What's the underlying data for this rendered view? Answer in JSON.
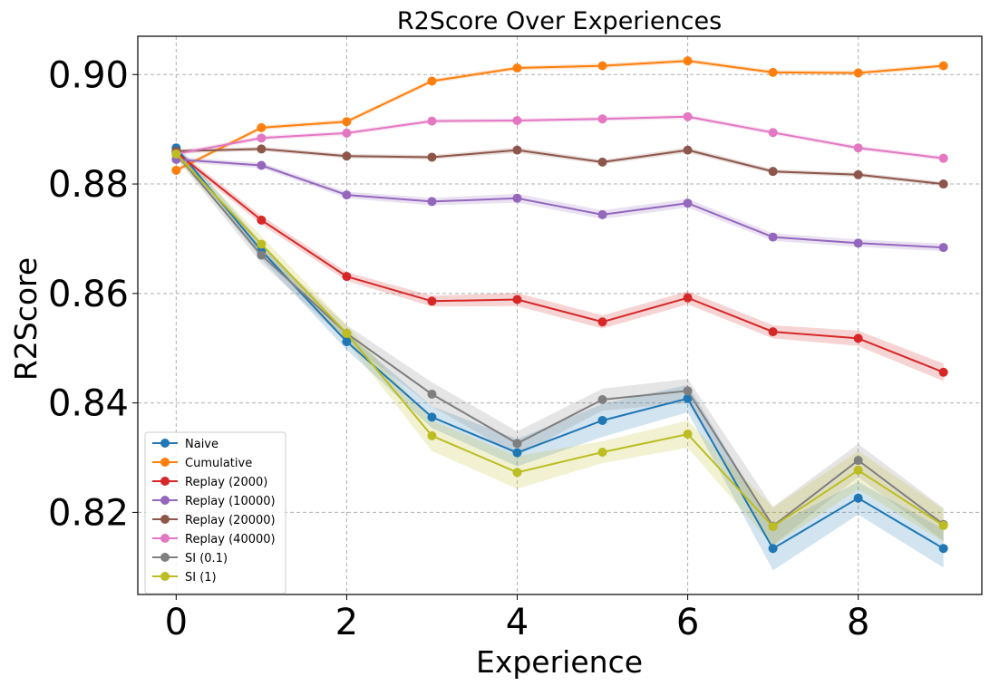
{
  "chart_data": {
    "type": "line",
    "title": "R2Score Over Experiences",
    "xlabel": "Experience",
    "ylabel": "R2Score",
    "x": [
      0,
      1,
      2,
      3,
      4,
      5,
      6,
      7,
      8,
      9
    ],
    "xlim": [
      -0.45,
      9.45
    ],
    "ylim": [
      0.805,
      0.907
    ],
    "xticks": [
      0,
      2,
      4,
      6,
      8
    ],
    "xtick_labels": [
      "0",
      "2",
      "4",
      "6",
      "8"
    ],
    "yticks": [
      0.82,
      0.84,
      0.86,
      0.88,
      0.9
    ],
    "ytick_labels": [
      "0.82",
      "0.84",
      "0.86",
      "0.88",
      "0.90"
    ],
    "grid": true,
    "legend_position": "lower-left",
    "series": [
      {
        "name": "Naive",
        "color": "#1f77b4",
        "values": [
          0.8866,
          0.8678,
          0.8512,
          0.8374,
          0.8309,
          0.8368,
          0.8408,
          0.8134,
          0.8226,
          0.8134
        ],
        "band": [
          0.0008,
          0.0015,
          0.0015,
          0.002,
          0.0025,
          0.003,
          0.0025,
          0.004,
          0.003,
          0.0035
        ]
      },
      {
        "name": "Cumulative",
        "color": "#ff7f0e",
        "values": [
          0.8825,
          0.8903,
          0.8914,
          0.8988,
          0.9012,
          0.9016,
          0.9025,
          0.9004,
          0.9003,
          0.9016
        ],
        "band": [
          0.0004,
          0.0004,
          0.0004,
          0.0004,
          0.0004,
          0.0004,
          0.0004,
          0.0004,
          0.0004,
          0.0004
        ]
      },
      {
        "name": "Replay (2000)",
        "color": "#d62728",
        "values": [
          0.8858,
          0.8734,
          0.8631,
          0.8586,
          0.8589,
          0.8548,
          0.8592,
          0.853,
          0.8518,
          0.8456
        ],
        "band": [
          0.0006,
          0.0008,
          0.0008,
          0.001,
          0.0012,
          0.0012,
          0.0012,
          0.0012,
          0.0014,
          0.0016
        ]
      },
      {
        "name": "Replay (10000)",
        "color": "#9467bd",
        "values": [
          0.8845,
          0.8834,
          0.878,
          0.8768,
          0.8774,
          0.8744,
          0.8765,
          0.8703,
          0.8692,
          0.8684
        ],
        "band": [
          0.0005,
          0.0005,
          0.0006,
          0.0007,
          0.0008,
          0.0008,
          0.0008,
          0.0007,
          0.0007,
          0.0007
        ]
      },
      {
        "name": "Replay (20000)",
        "color": "#8c564b",
        "values": [
          0.886,
          0.8864,
          0.8851,
          0.8849,
          0.8862,
          0.884,
          0.8862,
          0.8823,
          0.8817,
          0.88
        ],
        "band": [
          0.0004,
          0.0004,
          0.0004,
          0.0004,
          0.0005,
          0.0004,
          0.0005,
          0.0004,
          0.0004,
          0.0004
        ]
      },
      {
        "name": "Replay (40000)",
        "color": "#e377c2",
        "values": [
          0.8855,
          0.8884,
          0.8893,
          0.8915,
          0.8916,
          0.8919,
          0.8923,
          0.8894,
          0.8866,
          0.8847
        ],
        "band": [
          0.0004,
          0.0004,
          0.0004,
          0.0004,
          0.0004,
          0.0004,
          0.0004,
          0.0004,
          0.0004,
          0.0004
        ]
      },
      {
        "name": "SI (0.1)",
        "color": "#7f7f7f",
        "values": [
          0.8855,
          0.867,
          0.8527,
          0.8416,
          0.8326,
          0.8406,
          0.8422,
          0.8175,
          0.8295,
          0.8178
        ],
        "band": [
          0.0008,
          0.0015,
          0.0015,
          0.0022,
          0.0022,
          0.002,
          0.0022,
          0.0035,
          0.003,
          0.003
        ]
      },
      {
        "name": "SI (1)",
        "color": "#bcbd22",
        "values": [
          0.8855,
          0.869,
          0.8527,
          0.834,
          0.8273,
          0.831,
          0.8343,
          0.8174,
          0.8277,
          0.8176
        ],
        "band": [
          0.0008,
          0.0015,
          0.0015,
          0.0028,
          0.003,
          0.002,
          0.0025,
          0.0035,
          0.0035,
          0.003
        ]
      }
    ]
  }
}
